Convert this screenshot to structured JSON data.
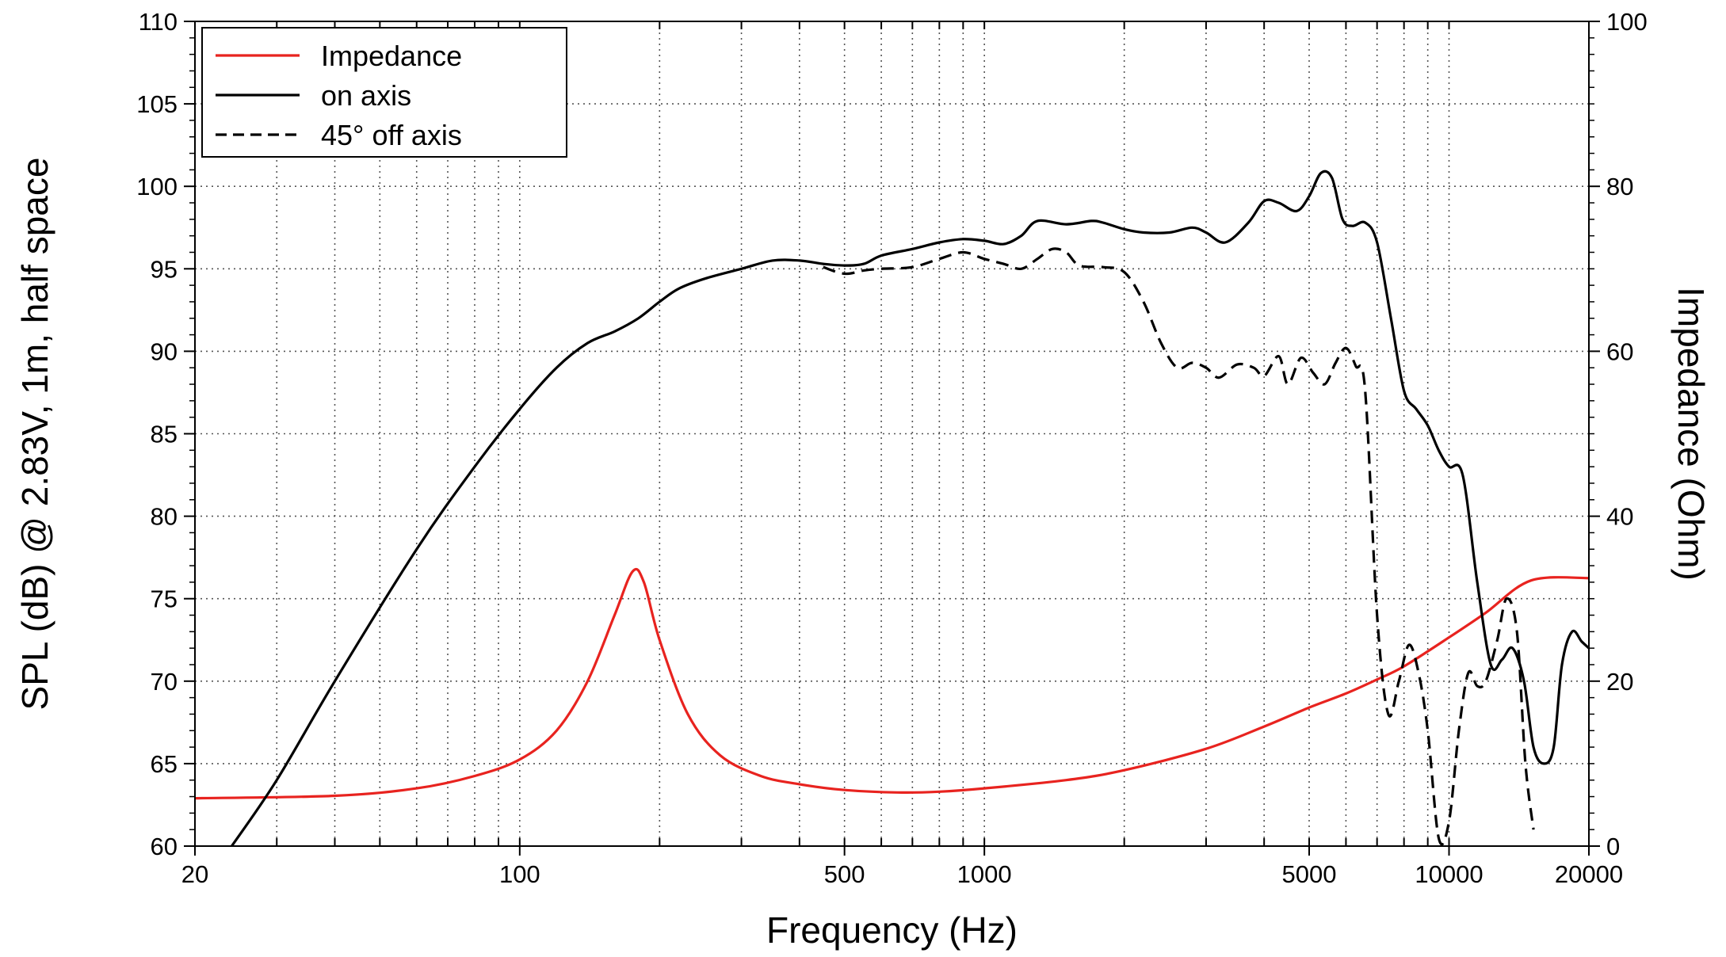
{
  "chart_data": {
    "type": "line",
    "xlabel": "Frequency (Hz)",
    "ylabel": "SPL (dB) @ 2.83V, 1m, half space",
    "y2label": "Impedance (Ohm)",
    "x_scale": "log",
    "xlim": [
      20,
      20000
    ],
    "ylim": [
      60,
      110
    ],
    "y2lim": [
      0,
      100
    ],
    "grid": true,
    "legend_position": "top-left",
    "x_tick_labels": [
      "20",
      "100",
      "500",
      "1000",
      "5000",
      "10000",
      "20000"
    ],
    "x_ticks": [
      20,
      100,
      500,
      1000,
      5000,
      10000,
      20000
    ],
    "y_ticks": [
      60,
      65,
      70,
      75,
      80,
      85,
      90,
      95,
      100,
      105,
      110
    ],
    "y_tick_labels": [
      "60",
      "65",
      "70",
      "75",
      "80",
      "85",
      "90",
      "95",
      "100",
      "105",
      "110"
    ],
    "y2_ticks": [
      0,
      20,
      40,
      60,
      80,
      100
    ],
    "y2_tick_labels": [
      "0",
      "20",
      "40",
      "60",
      "80",
      "100"
    ],
    "series": [
      {
        "name": "Impedance",
        "color": "#e8231f",
        "dash": "solid",
        "axis": "right",
        "x": [
          20,
          40,
          60,
          80,
          100,
          120,
          140,
          160,
          175,
          185,
          200,
          230,
          270,
          330,
          400,
          500,
          650,
          800,
          1000,
          1500,
          2000,
          3000,
          4000,
          5000,
          6000,
          7000,
          8000,
          10000,
          12000,
          15000,
          20000
        ],
        "y": [
          5.8,
          6.1,
          7,
          8.5,
          10.5,
          14,
          20,
          28,
          33.3,
          32,
          25,
          16,
          11,
          8.5,
          7.5,
          6.8,
          6.5,
          6.6,
          7.0,
          8.0,
          9.2,
          11.8,
          14.5,
          16.8,
          18.5,
          20.2,
          21.8,
          25.3,
          28.3,
          32.2,
          32.5
        ]
      },
      {
        "name": "on axis",
        "color": "#000000",
        "dash": "solid",
        "axis": "left",
        "x": [
          24,
          30,
          40,
          60,
          80,
          100,
          120,
          140,
          160,
          180,
          200,
          220,
          250,
          300,
          350,
          400,
          450,
          500,
          550,
          600,
          700,
          800,
          900,
          1000,
          1100,
          1200,
          1300,
          1500,
          1700,
          1800,
          2000,
          2200,
          2500,
          2800,
          3000,
          3300,
          3700,
          4000,
          4300,
          4700,
          5000,
          5300,
          5600,
          5900,
          6200,
          6600,
          7000,
          7500,
          8000,
          8500,
          9000,
          9500,
          10000,
          10700,
          11500,
          12300,
          13000,
          13700,
          14500,
          15200,
          16000,
          16800,
          17500,
          18400,
          19300,
          20000
        ],
        "y": [
          60,
          64,
          70,
          78,
          83,
          86.5,
          89,
          90.5,
          91.2,
          92,
          93,
          93.8,
          94.4,
          95.0,
          95.5,
          95.5,
          95.3,
          95.2,
          95.3,
          95.8,
          96.2,
          96.6,
          96.8,
          96.7,
          96.5,
          97.0,
          97.9,
          97.7,
          97.9,
          97.8,
          97.4,
          97.2,
          97.2,
          97.5,
          97.2,
          96.6,
          97.8,
          99.1,
          99.0,
          98.5,
          99.4,
          100.8,
          100.5,
          98.0,
          97.6,
          97.8,
          96.6,
          92.0,
          87.6,
          86.5,
          85.5,
          84.0,
          83.0,
          82.5,
          76.0,
          71.0,
          71.3,
          72.0,
          70.0,
          66.0,
          65.0,
          66.0,
          71.0,
          73.0,
          72.4,
          72.0
        ]
      },
      {
        "name": "45° off axis",
        "color": "#000000",
        "dash": "dashed",
        "axis": "left",
        "x": [
          450,
          500,
          550,
          600,
          700,
          800,
          900,
          1000,
          1100,
          1200,
          1300,
          1400,
          1500,
          1600,
          1800,
          2000,
          2200,
          2400,
          2600,
          2800,
          3000,
          3200,
          3500,
          3800,
          4000,
          4300,
          4500,
          4800,
          5100,
          5400,
          5700,
          6000,
          6300,
          6600,
          7000,
          7400,
          7800,
          8200,
          8600,
          9000,
          9500,
          10000,
          10500,
          11000,
          11500,
          12000,
          12700,
          13300,
          14000,
          14600,
          15200
        ],
        "y": [
          95.1,
          94.7,
          94.9,
          95.0,
          95.1,
          95.6,
          96.0,
          95.6,
          95.3,
          95.0,
          95.6,
          96.2,
          96.0,
          95.2,
          95.1,
          94.8,
          93.0,
          90.5,
          89.0,
          89.3,
          89.0,
          88.4,
          89.2,
          89.0,
          88.5,
          89.7,
          88.0,
          89.6,
          88.7,
          88.0,
          89.3,
          90.2,
          89.1,
          87.6,
          74.0,
          68.0,
          70.0,
          72.2,
          70.5,
          67.0,
          60.5,
          61.5,
          67.0,
          70.5,
          69.7,
          70.0,
          72.5,
          75.0,
          73.0,
          65.0,
          61.0
        ]
      }
    ]
  }
}
